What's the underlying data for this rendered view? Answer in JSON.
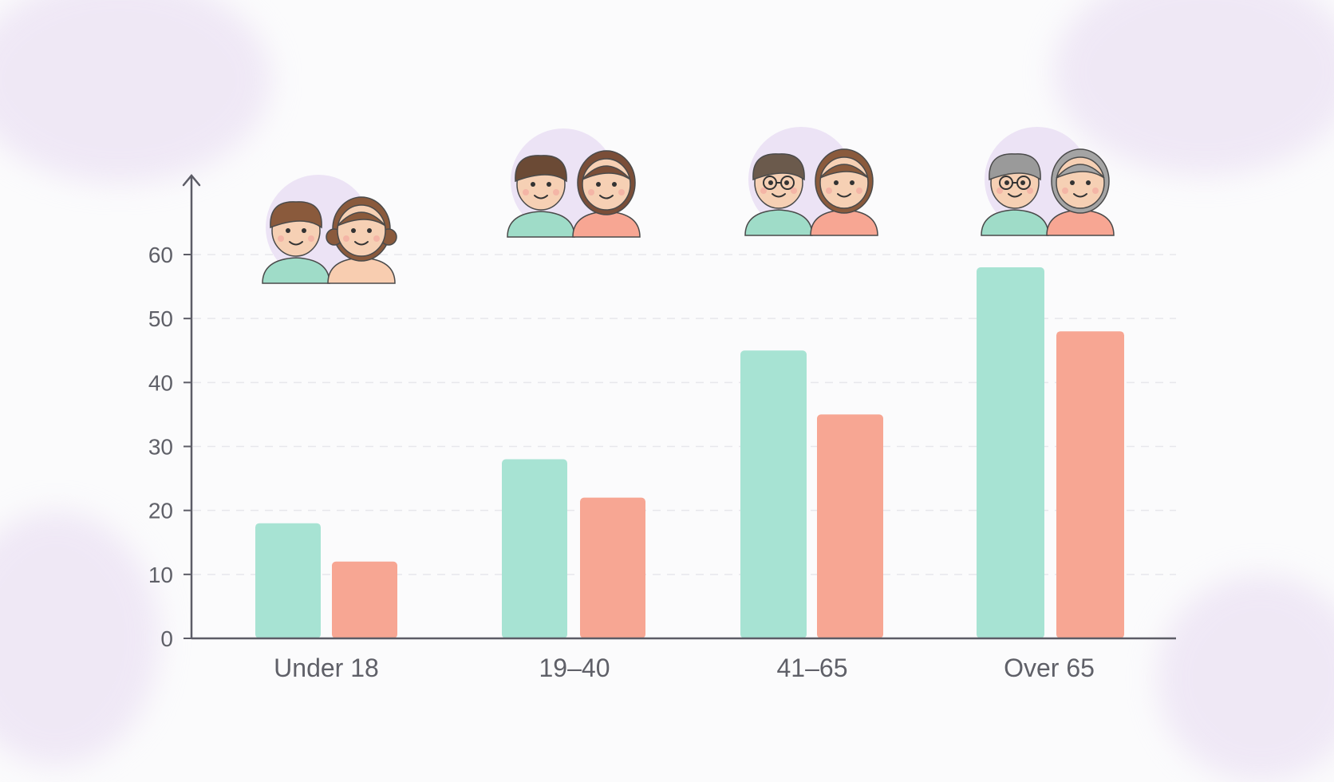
{
  "chart_data": {
    "type": "bar",
    "categories": [
      "Under 18",
      "19–40",
      "41–65",
      "Over 65"
    ],
    "series": [
      {
        "values": [
          18,
          28,
          45,
          58
        ],
        "color": "#a7e3d3"
      },
      {
        "values": [
          12,
          22,
          35,
          48
        ],
        "color": "#f7a693"
      }
    ],
    "y_ticks": [
      "0",
      "10",
      "20",
      "30",
      "40",
      "50",
      "60"
    ],
    "ylim": [
      0,
      60
    ],
    "grid": true,
    "legend": "none",
    "icons": [
      "children-pair-icon",
      "young-adults-pair-icon",
      "middle-aged-pair-icon",
      "seniors-pair-icon"
    ]
  },
  "colors": {
    "axis": "#5c5c66",
    "tick_text": "#5f6068",
    "grid": "#e7e7ec",
    "background_accent": "#e6d9f1"
  }
}
